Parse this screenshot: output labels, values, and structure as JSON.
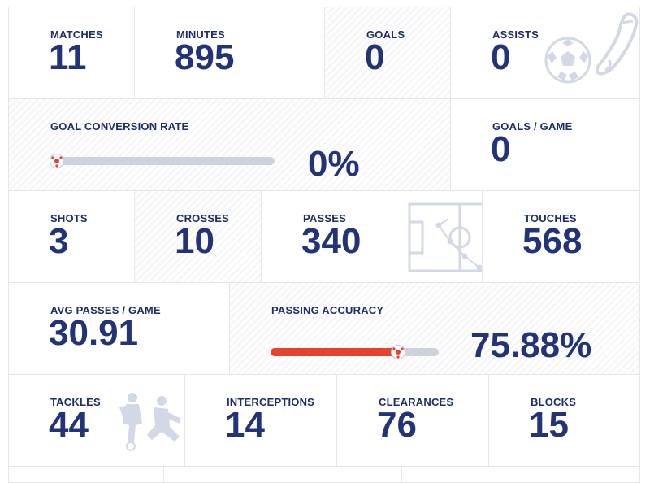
{
  "row1": {
    "matches": {
      "label": "MATCHES",
      "value": "11"
    },
    "minutes": {
      "label": "MINUTES",
      "value": "895"
    },
    "goals": {
      "label": "GOALS",
      "value": "0"
    },
    "assists": {
      "label": "ASSISTS",
      "value": "0"
    }
  },
  "row2": {
    "conversion": {
      "label": "GOAL CONVERSION RATE",
      "value": "0%",
      "progress": 0
    },
    "goals_per_game": {
      "label": "GOALS / GAME",
      "value": "0"
    }
  },
  "row3": {
    "shots": {
      "label": "SHOTS",
      "value": "3"
    },
    "crosses": {
      "label": "CROSSES",
      "value": "10"
    },
    "passes": {
      "label": "PASSES",
      "value": "340"
    },
    "touches": {
      "label": "TOUCHES",
      "value": "568"
    }
  },
  "row4": {
    "avg_passes": {
      "label": "AVG PASSES / GAME",
      "value": "30.91"
    },
    "accuracy": {
      "label": "PASSING ACCURACY",
      "value": "75.88%",
      "progress": 0.7588
    }
  },
  "row5": {
    "tackles": {
      "label": "TACKLES",
      "value": "44"
    },
    "interceptions": {
      "label": "INTERCEPTIONS",
      "value": "14"
    },
    "clearances": {
      "label": "CLEARANCES",
      "value": "76"
    },
    "blocks": {
      "label": "BLOCKS",
      "value": "15"
    }
  },
  "colors": {
    "text": "#1d2d6b",
    "value": "#22337a",
    "accent": "#e8412f",
    "track": "#cdd2dc",
    "icon": "#d3d8e6"
  },
  "icons": [
    "football-boot-icon",
    "football-icon",
    "pitch-diagram-icon",
    "players-tackle-icon"
  ]
}
